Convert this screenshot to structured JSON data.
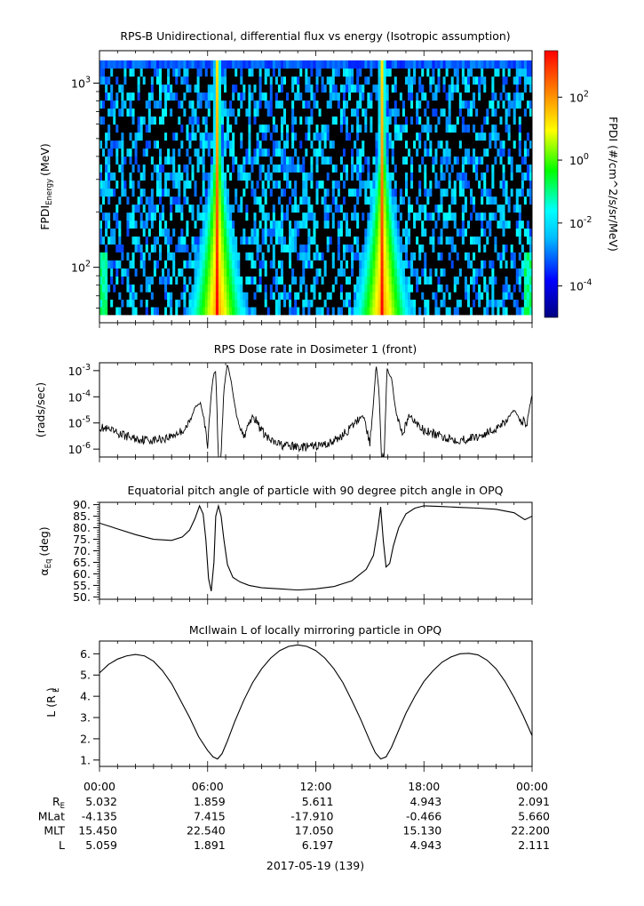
{
  "chart_data": [
    {
      "type": "heatmap",
      "title": "RPS-B  Unidirectional, differential flux vs energy (Isotropic assumption)",
      "ylabel": "FPDI",
      "ylabel_sub": "Energy",
      "ylabel_unit": "(MeV)",
      "yscale": "log",
      "ylim": [
        50,
        1500
      ],
      "yticks": [
        {
          "value": 100,
          "base": "10",
          "exp": "2"
        },
        {
          "value": 1000,
          "base": "10",
          "exp": "3"
        }
      ],
      "colorbar": {
        "label": "FPDI (#/cm^2/s/sr/MeV)",
        "scale": "log",
        "range": [
          1e-05,
          3000
        ],
        "ticks": [
          {
            "value": 0.0001,
            "base": "10",
            "exp": "-4"
          },
          {
            "value": 0.01,
            "base": "10",
            "exp": "-2"
          },
          {
            "value": 1,
            "base": "10",
            "exp": "0"
          },
          {
            "value": 100,
            "base": "10",
            "exp": "2"
          }
        ]
      },
      "energy_bins_mev": [
        58,
        64,
        70,
        77,
        85,
        94,
        104,
        115,
        127,
        140,
        155,
        171,
        189,
        209,
        231,
        255,
        282,
        312,
        345,
        381,
        421,
        465,
        514,
        568,
        628,
        694,
        767,
        848,
        937,
        1035,
        1144,
        1265
      ],
      "flux_peaks_hours": [
        6.55,
        15.7
      ]
    },
    {
      "type": "line",
      "title": "RPS  Dose rate in Dosimeter 1 (front)",
      "ylabel": "(rads/sec)",
      "yscale": "log",
      "ylim": [
        5e-07,
        0.002
      ],
      "yticks": [
        {
          "value": 1e-06,
          "base": "10",
          "exp": "-6"
        },
        {
          "value": 1e-05,
          "base": "10",
          "exp": "-5"
        },
        {
          "value": 0.0001,
          "base": "10",
          "exp": "-4"
        },
        {
          "value": 0.001,
          "base": "10",
          "exp": "-3"
        }
      ],
      "x": [
        0,
        1,
        2,
        3,
        3.8,
        4.6,
        5.0,
        5.3,
        5.6,
        5.8,
        6.0,
        6.15,
        6.3,
        6.45,
        6.6,
        6.75,
        6.9,
        7.1,
        7.3,
        7.6,
        8.0,
        8.5,
        9.0,
        9.5,
        10,
        10.5,
        11,
        11.5,
        12,
        12.5,
        13,
        13.5,
        14,
        14.3,
        14.6,
        14.8,
        15.0,
        15.2,
        15.35,
        15.5,
        15.65,
        15.8,
        15.95,
        16.2,
        16.5,
        16.8,
        17.2,
        18,
        19,
        20,
        21,
        21.8,
        22.5,
        23.0,
        23.4,
        23.7,
        24
      ],
      "y": [
        7e-06,
        4e-06,
        2.5e-06,
        2.2e-06,
        2.8e-06,
        5e-06,
        1e-05,
        4e-05,
        6e-05,
        1.5e-05,
        1e-06,
        5e-05,
        0.0006,
        0.001,
        5e-07,
        5e-07,
        0.0002,
        0.0018,
        0.0004,
        2e-05,
        3e-06,
        2e-05,
        5e-06,
        2e-06,
        1.5e-06,
        1.3e-06,
        1.2e-06,
        1.2e-06,
        1.3e-06,
        1.5e-06,
        2e-06,
        3.5e-06,
        7e-06,
        1.2e-05,
        2e-05,
        7e-06,
        1.5e-06,
        6e-05,
        0.0018,
        0.0002,
        5e-07,
        5e-07,
        0.0012,
        0.0005,
        1.5e-05,
        4e-06,
        1.8e-05,
        5e-06,
        3e-06,
        2.2e-06,
        3e-06,
        5e-06,
        1.2e-05,
        3e-05,
        1.2e-05,
        1e-05,
        0.00012
      ]
    },
    {
      "type": "line",
      "title": "Equatorial pitch angle of particle with 90 degree pitch angle in OPQ",
      "ylabel": "α",
      "ylabel_sub": "Eq",
      "ylabel_unit": "(deg)",
      "ylim": [
        49,
        91
      ],
      "yticks": [
        50,
        55,
        60,
        65,
        70,
        75,
        80,
        85,
        90
      ],
      "x": [
        0,
        1,
        2,
        3,
        4,
        4.6,
        5.0,
        5.3,
        5.55,
        5.75,
        5.9,
        6.05,
        6.2,
        6.35,
        6.45,
        6.6,
        6.75,
        6.9,
        7.1,
        7.4,
        7.8,
        8.3,
        9,
        10,
        11,
        12,
        13,
        14,
        14.8,
        15.2,
        15.45,
        15.6,
        15.75,
        15.9,
        16.1,
        16.3,
        16.6,
        17,
        17.5,
        18,
        19,
        20,
        21,
        22,
        23,
        23.6,
        24
      ],
      "y": [
        82,
        79.5,
        77,
        75,
        74.5,
        76,
        79,
        84,
        89.5,
        86,
        75,
        58,
        52.5,
        65,
        85,
        89.5,
        85,
        75,
        64,
        58.5,
        56.5,
        55,
        54,
        53.5,
        53,
        53.5,
        54.5,
        57,
        62,
        68,
        80,
        89,
        74,
        63,
        64.5,
        72,
        80,
        86,
        88.5,
        89.5,
        89.2,
        88.8,
        88.5,
        88,
        86.5,
        83.5,
        85
      ]
    },
    {
      "type": "line",
      "title": "McIlwain L of locally mirroring particle in OPQ",
      "ylabel": "L",
      "ylabel_sub": "E",
      "ylabel_unit": "(R )",
      "ylim": [
        0.7,
        6.6
      ],
      "yticks": [
        1,
        2,
        3,
        4,
        5,
        6
      ],
      "x": [
        0,
        0.5,
        1,
        1.5,
        2,
        2.5,
        3,
        3.5,
        4,
        4.5,
        5,
        5.5,
        6,
        6.3,
        6.55,
        6.8,
        7.1,
        7.5,
        8,
        8.5,
        9,
        9.5,
        10,
        10.5,
        11,
        11.5,
        12,
        12.5,
        13,
        13.5,
        14,
        14.5,
        15,
        15.3,
        15.6,
        15.9,
        16.2,
        16.6,
        17,
        17.5,
        18,
        18.5,
        19,
        19.5,
        20,
        20.5,
        21,
        21.5,
        22,
        22.5,
        23,
        23.5,
        24
      ],
      "y": [
        5.1,
        5.5,
        5.75,
        5.9,
        5.97,
        5.9,
        5.65,
        5.2,
        4.6,
        3.8,
        3.0,
        2.1,
        1.45,
        1.15,
        1.05,
        1.3,
        1.9,
        2.8,
        3.8,
        4.65,
        5.3,
        5.8,
        6.15,
        6.35,
        6.42,
        6.35,
        6.15,
        5.8,
        5.3,
        4.65,
        3.8,
        2.9,
        1.9,
        1.35,
        1.05,
        1.15,
        1.6,
        2.4,
        3.2,
        4.0,
        4.7,
        5.2,
        5.6,
        5.85,
        6.0,
        6.02,
        5.95,
        5.7,
        5.3,
        4.7,
        3.95,
        3.1,
        2.15
      ]
    }
  ],
  "x_axis": {
    "range_hours": [
      0,
      24
    ],
    "tick_hours": [
      0,
      6,
      12,
      18,
      24
    ],
    "minor_step_hours": 1,
    "tick_labels": [
      "00:00",
      "06:00",
      "12:00",
      "18:00",
      "00:00"
    ],
    "date_label": "2017-05-19 (139)"
  },
  "ephemeris": {
    "rows": [
      {
        "label": "R",
        "label_sub": "E",
        "values": [
          "5.032",
          "1.859",
          "5.611",
          "4.943",
          "2.091"
        ]
      },
      {
        "label": "MLat",
        "values": [
          "-4.135",
          "7.415",
          "-17.910",
          "-0.466",
          "5.660"
        ]
      },
      {
        "label": "MLT",
        "values": [
          "15.450",
          "22.540",
          "17.050",
          "15.130",
          "22.200"
        ]
      },
      {
        "label": "L",
        "values": [
          "5.059",
          "1.891",
          "6.197",
          "4.943",
          "2.111"
        ]
      }
    ]
  }
}
